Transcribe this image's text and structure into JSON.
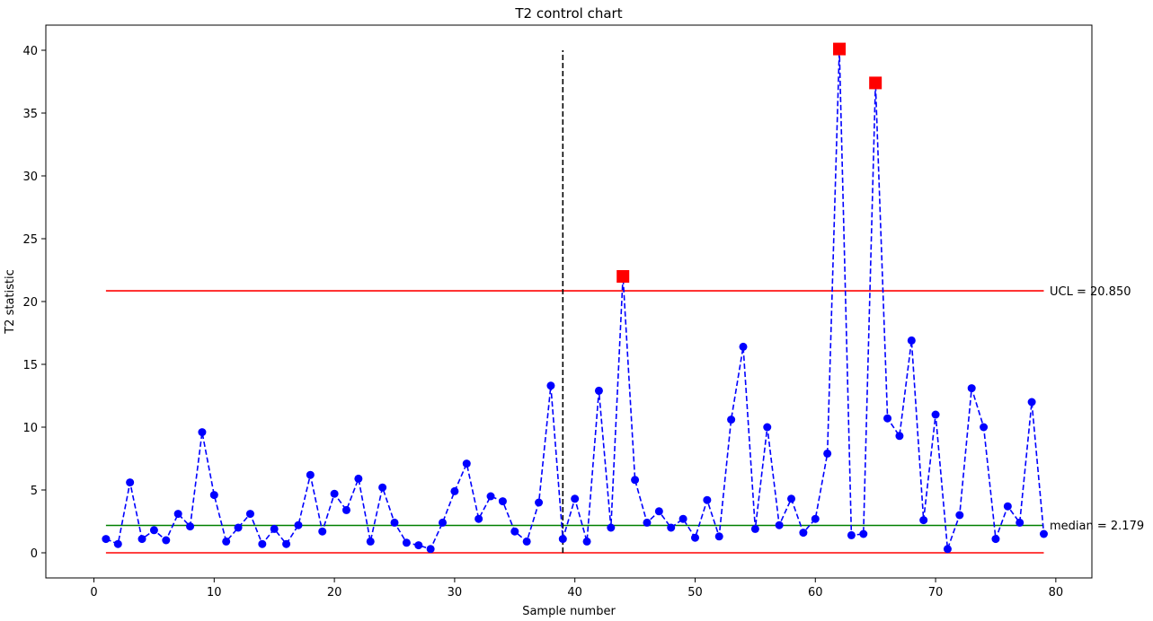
{
  "chart_data": {
    "type": "line",
    "title": "T2 control chart",
    "xlabel": "Sample number",
    "ylabel": "T2 statistic",
    "xlim": [
      -4,
      83
    ],
    "ylim": [
      -2,
      42
    ],
    "xticks": [
      0,
      10,
      20,
      30,
      40,
      50,
      60,
      70,
      80
    ],
    "yticks": [
      0,
      5,
      10,
      15,
      20,
      25,
      30,
      35,
      40
    ],
    "grid": false,
    "legend": "none",
    "x": [
      1,
      2,
      3,
      4,
      5,
      6,
      7,
      8,
      9,
      10,
      11,
      12,
      13,
      14,
      15,
      16,
      17,
      18,
      19,
      20,
      21,
      22,
      23,
      24,
      25,
      26,
      27,
      28,
      29,
      30,
      31,
      32,
      33,
      34,
      35,
      36,
      37,
      38,
      39,
      40,
      41,
      42,
      43,
      44,
      45,
      46,
      47,
      48,
      49,
      50,
      51,
      52,
      53,
      54,
      55,
      56,
      57,
      58,
      59,
      60,
      61,
      62,
      63,
      64,
      65,
      66,
      67,
      68,
      69,
      70,
      71,
      72,
      73,
      74,
      75,
      76,
      77,
      78,
      79
    ],
    "values": [
      1.1,
      0.7,
      5.6,
      1.1,
      1.8,
      1.0,
      3.1,
      2.1,
      9.6,
      4.6,
      0.9,
      2.0,
      3.1,
      0.7,
      1.9,
      0.7,
      2.2,
      6.2,
      1.7,
      4.7,
      3.4,
      5.9,
      0.9,
      5.2,
      2.4,
      0.8,
      0.6,
      0.3,
      2.4,
      4.9,
      7.1,
      2.7,
      4.5,
      4.1,
      1.7,
      0.9,
      4.0,
      13.3,
      1.1,
      4.3,
      0.9,
      12.9,
      2.0,
      22.0,
      5.8,
      2.4,
      3.3,
      2.0,
      2.7,
      1.2,
      4.2,
      1.3,
      10.6,
      16.4,
      1.9,
      10.0,
      2.2,
      4.3,
      1.6,
      2.7,
      7.9,
      40.1,
      1.4,
      1.5,
      37.4,
      10.7,
      9.3,
      16.9,
      2.6,
      11.0,
      0.3,
      3.0,
      13.1,
      10.0,
      1.1,
      3.7,
      2.4,
      12.0,
      1.5
    ],
    "out_of_control_x": [
      44,
      62,
      65
    ],
    "ucl": 20.85,
    "lcl": 0,
    "median": 2.179,
    "vline_x": 39,
    "vline_y": [
      0,
      40
    ],
    "hline_x": [
      1,
      79
    ],
    "annotations": {
      "ucl_label": "UCL = 20.850",
      "median_label": "median = 2.179"
    },
    "colors": {
      "series": "#0000ff",
      "out_of_control": "#ff0000",
      "limits": "#ff0000",
      "median": "#008000",
      "vline": "#000000"
    }
  }
}
